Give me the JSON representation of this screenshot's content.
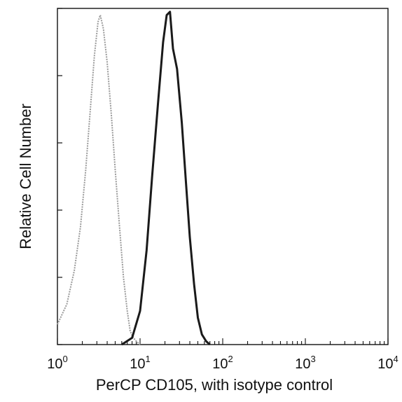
{
  "chart_data": {
    "type": "line",
    "title": "",
    "xlabel": "PerCP CD105, with isotype control",
    "ylabel": "Relative Cell Number",
    "x_scale": "log",
    "xlim": [
      1,
      10000
    ],
    "ylim": [
      0,
      1
    ],
    "grid": false,
    "legend": "none",
    "x_ticks": [
      {
        "value": 1,
        "base": "10",
        "exp": "0"
      },
      {
        "value": 10,
        "base": "10",
        "exp": "1"
      },
      {
        "value": 100,
        "base": "10",
        "exp": "2"
      },
      {
        "value": 1000,
        "base": "10",
        "exp": "3"
      },
      {
        "value": 10000,
        "base": "10",
        "exp": "4"
      }
    ],
    "y_ticks": [
      0,
      0.2,
      0.4,
      0.6,
      0.8,
      1.0
    ],
    "series": [
      {
        "color": "#9a9a9a",
        "x": [
          1.0,
          1.3,
          1.6,
          1.9,
          2.2,
          2.5,
          2.8,
          3.1,
          3.3,
          3.6,
          4.0,
          4.5,
          5.0,
          5.6,
          6.3,
          7.0,
          7.6,
          8.3,
          9.0,
          10.0
        ],
        "y": [
          0.06,
          0.12,
          0.22,
          0.35,
          0.52,
          0.7,
          0.86,
          0.96,
          0.98,
          0.94,
          0.84,
          0.68,
          0.52,
          0.36,
          0.2,
          0.1,
          0.04,
          0.02,
          0.01,
          0.0
        ]
      },
      {
        "color": "#1a1a1a",
        "x": [
          6.0,
          8.0,
          10.0,
          12.0,
          14.0,
          16.5,
          19.0,
          21.0,
          23.0,
          25.0,
          28.0,
          32.0,
          36.0,
          40.0,
          45.0,
          50.0,
          56.0,
          63.0,
          70.0
        ],
        "y": [
          0.0,
          0.02,
          0.1,
          0.28,
          0.5,
          0.72,
          0.9,
          0.98,
          0.99,
          0.88,
          0.82,
          0.66,
          0.48,
          0.32,
          0.18,
          0.08,
          0.03,
          0.01,
          0.0
        ]
      }
    ]
  }
}
